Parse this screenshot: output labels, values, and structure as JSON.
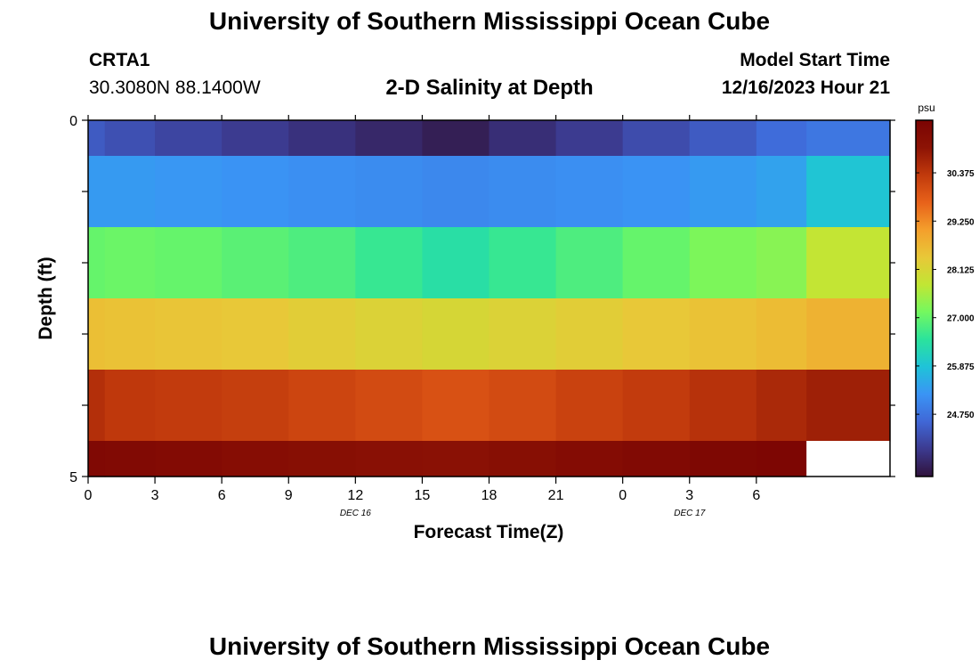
{
  "header": {
    "title": "University of Southern Mississippi Ocean Cube",
    "station_id": "CRTA1",
    "coordinates": "30.3080N  88.1400W",
    "subtitle": "2-D Salinity at Depth",
    "model_start_label": "Model Start Time",
    "model_start_value": "12/16/2023 Hour 21"
  },
  "footer": {
    "title": "University of Southern Mississippi Ocean Cube"
  },
  "chart_data": {
    "type": "heatmap",
    "title": "2-D Salinity at Depth",
    "xlabel": "Forecast Time(Z)",
    "ylabel": "Depth (ft)",
    "x_tick_labels": [
      "0",
      "3",
      "6",
      "9",
      "12",
      "15",
      "18",
      "21",
      "0",
      "3",
      "6"
    ],
    "x_date_labels": [
      {
        "label": "DEC 16",
        "at_tick_index": 4
      },
      {
        "label": "DEC 17",
        "at_tick_index": 9
      }
    ],
    "y_tick_labels": [
      "0",
      "5"
    ],
    "ylim": [
      0,
      5
    ],
    "x_hours": [
      0,
      1.5,
      4.5,
      7.5,
      10.5,
      13.5,
      16.5,
      19.5,
      22.5,
      25.5,
      28.5,
      31.5,
      33
    ],
    "depth_bands": [
      [
        0,
        0.5
      ],
      [
        0.5,
        1.5
      ],
      [
        1.5,
        2.5
      ],
      [
        2.5,
        3.5
      ],
      [
        3.5,
        4.5
      ],
      [
        4.5,
        5
      ]
    ],
    "values": [
      [
        24.4,
        24.25,
        24.1,
        23.95,
        23.8,
        23.65,
        23.5,
        23.75,
        23.95,
        24.2,
        24.4,
        24.65,
        24.8
      ],
      [
        25.3,
        25.3,
        25.25,
        25.2,
        25.15,
        25.1,
        25.05,
        25.1,
        25.15,
        25.2,
        25.3,
        25.4,
        25.9
      ],
      [
        27.0,
        27.05,
        27.0,
        26.9,
        26.8,
        26.6,
        26.4,
        26.6,
        26.8,
        27.0,
        27.2,
        27.3,
        27.8
      ],
      [
        28.55,
        28.5,
        28.45,
        28.4,
        28.3,
        28.2,
        28.1,
        28.2,
        28.3,
        28.4,
        28.5,
        28.6,
        28.75
      ],
      [
        30.5,
        30.35,
        30.3,
        30.25,
        30.15,
        30.05,
        29.95,
        30.05,
        30.2,
        30.3,
        30.45,
        30.6,
        30.75
      ],
      [
        31.4,
        31.35,
        31.3,
        31.2,
        31.15,
        31.1,
        31.05,
        31.15,
        31.25,
        31.35,
        31.45,
        31.5,
        null
      ]
    ],
    "colorbar": {
      "unit": "psu",
      "tick_labels": [
        "30.375",
        "29.250",
        "28.125",
        "27.000",
        "25.875",
        "24.750"
      ],
      "tick_values": [
        30.375,
        29.25,
        28.125,
        27.0,
        25.875,
        24.75
      ],
      "range": [
        23.3,
        31.6
      ],
      "colors": [
        "#30123b",
        "#3c3a8f",
        "#4067d6",
        "#3a94f5",
        "#1fc3d8",
        "#2be39c",
        "#74f85f",
        "#c1e634",
        "#e8c838",
        "#f49f2c",
        "#e8621a",
        "#c13a0c",
        "#8d1305",
        "#7a0403"
      ]
    }
  }
}
